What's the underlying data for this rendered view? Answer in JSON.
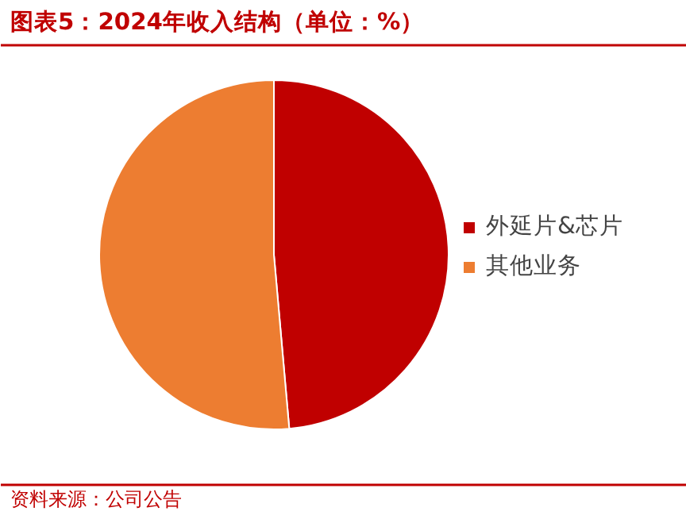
{
  "chart_data": {
    "type": "pie",
    "title": "图表5：2024年收入结构（单位：%）",
    "categories": [
      "外延片&芯片",
      "其他业务"
    ],
    "values": [
      48.6,
      51.4
    ],
    "colors": [
      "#c00000",
      "#ed7d31"
    ],
    "legend": "right",
    "annotations": [
      "资料来源：公司公告"
    ]
  }
}
